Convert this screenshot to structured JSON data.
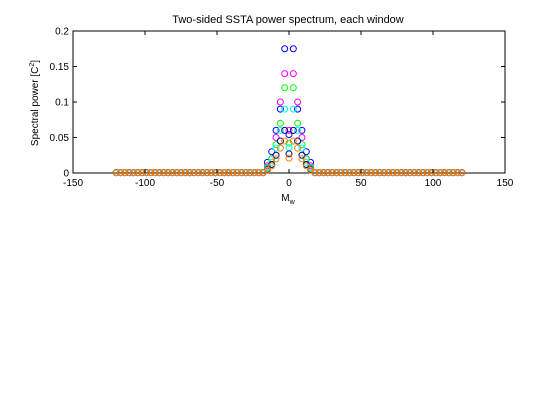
{
  "chart_data": {
    "type": "scatter",
    "title": "Two-sided SSTA power spectrum, each window",
    "xlabel_main": "M",
    "xlabel_sub": "w",
    "ylabel_main": "Spectral power [C",
    "ylabel_sup": "2",
    "ylabel_end": "]",
    "xlim": [
      -150,
      150
    ],
    "ylim": [
      0,
      0.2
    ],
    "xticks": [
      -150,
      -100,
      -50,
      0,
      50,
      100,
      150
    ],
    "yticks": [
      0,
      0.05,
      0.1,
      0.15,
      0.2
    ],
    "xtick_labels": [
      "-150",
      "-100",
      "-50",
      "0",
      "50",
      "100",
      "150"
    ],
    "ytick_labels": [
      "0",
      "0.05",
      "0.1",
      "0.15",
      "0.2"
    ],
    "grid": false,
    "legend": "none",
    "marker": "open-circle",
    "x_range": [
      -120,
      120
    ],
    "x_step": 3,
    "series": [
      {
        "color": "#0000ff",
        "peak_x": [
          -3,
          3
        ],
        "peak_values": [
          0.175,
          0.175
        ],
        "near_values": [
          0.09,
          0.06,
          0.03,
          0.015,
          0.005
        ]
      },
      {
        "color": "#ff00ff",
        "peak_x": [
          -3,
          3
        ],
        "peak_values": [
          0.14,
          0.14
        ],
        "near_values": [
          0.1,
          0.05,
          0.02,
          0.01,
          0.004
        ]
      },
      {
        "color": "#00ff00",
        "peak_x": [
          -3,
          3
        ],
        "peak_values": [
          0.12,
          0.12
        ],
        "near_values": [
          0.07,
          0.04,
          0.02,
          0.008,
          0.003
        ]
      },
      {
        "color": "#00ffff",
        "peak_x": [
          -3,
          3
        ],
        "peak_values": [
          0.09,
          0.09
        ],
        "near_values": [
          0.06,
          0.035,
          0.015,
          0.006,
          0.002
        ]
      },
      {
        "color": "#000080",
        "peak_x": [
          -3,
          3
        ],
        "peak_values": [
          0.06,
          0.06
        ],
        "near_values": [
          0.045,
          0.025,
          0.012,
          0.005,
          0.002
        ]
      },
      {
        "color": "#ff8000",
        "peak_x": [
          -3,
          3
        ],
        "peak_values": [
          0.045,
          0.045
        ],
        "near_values": [
          0.035,
          0.02,
          0.01,
          0.004,
          0.002
        ]
      }
    ]
  }
}
